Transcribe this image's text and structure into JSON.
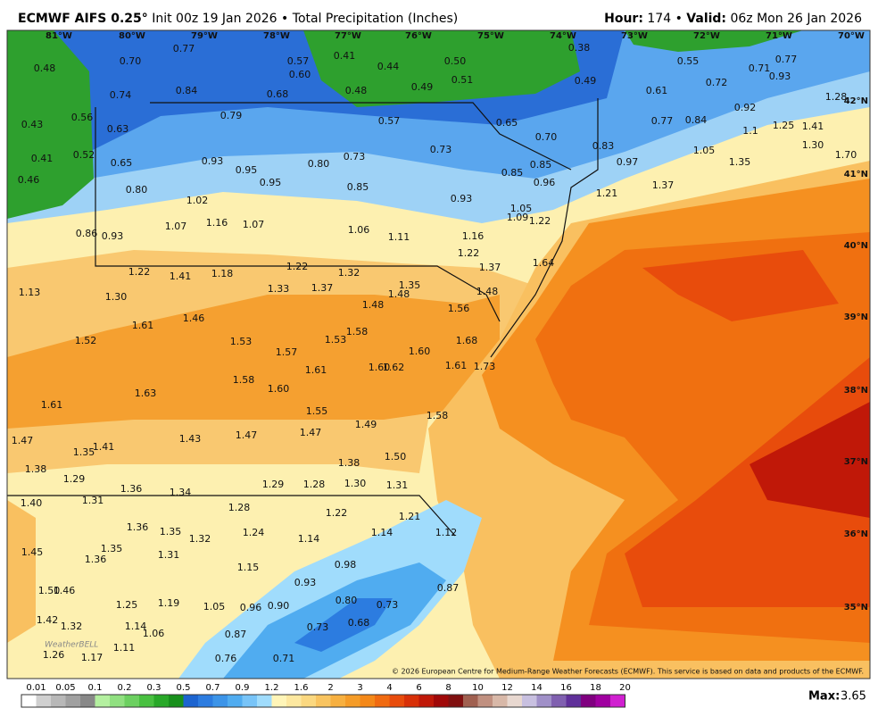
{
  "header": {
    "model": "ECMWF AIFS 0.25°",
    "init": "Init 00z 19 Jan 2026",
    "sep1": "•",
    "product": "Total Precipitation (Inches)",
    "hour_label": "Hour:",
    "hour": "174",
    "sep2": "•",
    "valid_label": "Valid:",
    "valid": "06z Mon 26 Jan 2026"
  },
  "longitudes": [
    "81°W",
    "80°W",
    "79°W",
    "78°W",
    "77°W",
    "76°W",
    "75°W",
    "74°W",
    "73°W",
    "72°W",
    "71°W",
    "70°W"
  ],
  "latitudes": [
    "42°N",
    "41°N",
    "40°N",
    "39°N",
    "38°N",
    "37°N",
    "36°N",
    "35°N"
  ],
  "points": [
    "0.48",
    "0.70",
    "0.77",
    "0.84",
    "0.74",
    "0.56",
    "0.43",
    "0.63",
    "0.41",
    "0.52",
    "0.65",
    "0.46",
    "0.80",
    "0.93",
    "0.95",
    "0.95",
    "0.79",
    "0.68",
    "0.57",
    "0.60",
    "0.41",
    "0.44",
    "0.48",
    "0.50",
    "0.51",
    "0.49",
    "0.38",
    "0.49",
    "0.57",
    "0.65",
    "0.70",
    "0.80",
    "0.73",
    "0.73",
    "0.85",
    "0.85",
    "0.85",
    "0.96",
    "0.93",
    "1.02",
    "1.07",
    "1.16",
    "1.07",
    "0.86",
    "0.93",
    "1.06",
    "1.11",
    "1.16",
    "1.05",
    "1.09",
    "1.22",
    "1.22",
    "1.37",
    "1.64",
    "0.55",
    "0.71",
    "0.77",
    "0.93",
    "0.72",
    "0.61",
    "0.77",
    "0.84",
    "0.92",
    "1.28",
    "1.25",
    "1.41",
    "1.1",
    "1.30",
    "1.70",
    "1.05",
    "0.83",
    "0.97",
    "1.35",
    "1.37",
    "1.21",
    "1.22",
    "1.41",
    "1.18",
    "1.22",
    "1.32",
    "1.33",
    "1.37",
    "1.13",
    "1.30",
    "1.48",
    "1.35",
    "1.48",
    "1.48",
    "1.56",
    "1.46",
    "1.61",
    "1.52",
    "1.58",
    "1.53",
    "1.53",
    "1.57",
    "1.68",
    "1.60",
    "1.61",
    "1.60",
    "1.62",
    "1.61",
    "1.73",
    "1.58",
    "1.60",
    "1.63",
    "1.61",
    "1.55",
    "1.49",
    "1.58",
    "1.47",
    "1.41",
    "1.35",
    "1.43",
    "1.47",
    "1.47",
    "1.38",
    "1.50",
    "1.38",
    "1.29",
    "1.36",
    "1.34",
    "1.29",
    "1.28",
    "1.30",
    "1.31",
    "1.40",
    "1.31",
    "1.28",
    "1.22",
    "1.21",
    "1.36",
    "1.35",
    "1.32",
    "1.24",
    "1.14",
    "1.14",
    "1.12",
    "1.45",
    "1.35",
    "1.36",
    "1.31",
    "1.15",
    "0.98",
    "0.93",
    "1.50",
    "1.46",
    "1.25",
    "1.19",
    "1.05",
    "0.96",
    "0.90",
    "0.80",
    "0.73",
    "0.87",
    "1.42",
    "1.32",
    "1.14",
    "1.06",
    "0.87",
    "0.73",
    "0.68",
    "1.26",
    "1.17",
    "1.11",
    "0.76",
    "0.71"
  ],
  "credit": "© 2026 European Centre for Medium-Range Weather Forecasts (ECMWF). This service is based on data and products of the ECMWF.",
  "watermark": "WeatherBELL",
  "colorbar": {
    "ticks": [
      "0.01",
      "0.05",
      "0.1",
      "0.2",
      "0.3",
      "0.5",
      "0.7",
      "0.9",
      "1.2",
      "1.6",
      "2",
      "3",
      "4",
      "6",
      "8",
      "10",
      "12",
      "14",
      "16",
      "18",
      "20"
    ],
    "colors": [
      "#ffffff",
      "#d0d0d0",
      "#b8b8b8",
      "#a0a0a0",
      "#888888",
      "#b4f0a0",
      "#90e080",
      "#6cd060",
      "#48c040",
      "#28a828",
      "#18901c",
      "#1c64d0",
      "#2c7ce0",
      "#3c94e8",
      "#50acf0",
      "#78c4f8",
      "#a0dcfc",
      "#fff5b8",
      "#fde8a0",
      "#fbd880",
      "#f9c460",
      "#f7b040",
      "#f59c28",
      "#f48818",
      "#f06a10",
      "#e84c0c",
      "#d83008",
      "#c01808",
      "#a00808",
      "#801010",
      "#a06050",
      "#c09080",
      "#d8b8a8",
      "#e8d8d0",
      "#c8c0e0",
      "#a090c8",
      "#8060b0",
      "#60309a",
      "#800080",
      "#a000a0",
      "#d020d0"
    ]
  },
  "max_label": "Max:",
  "max": "3.65"
}
